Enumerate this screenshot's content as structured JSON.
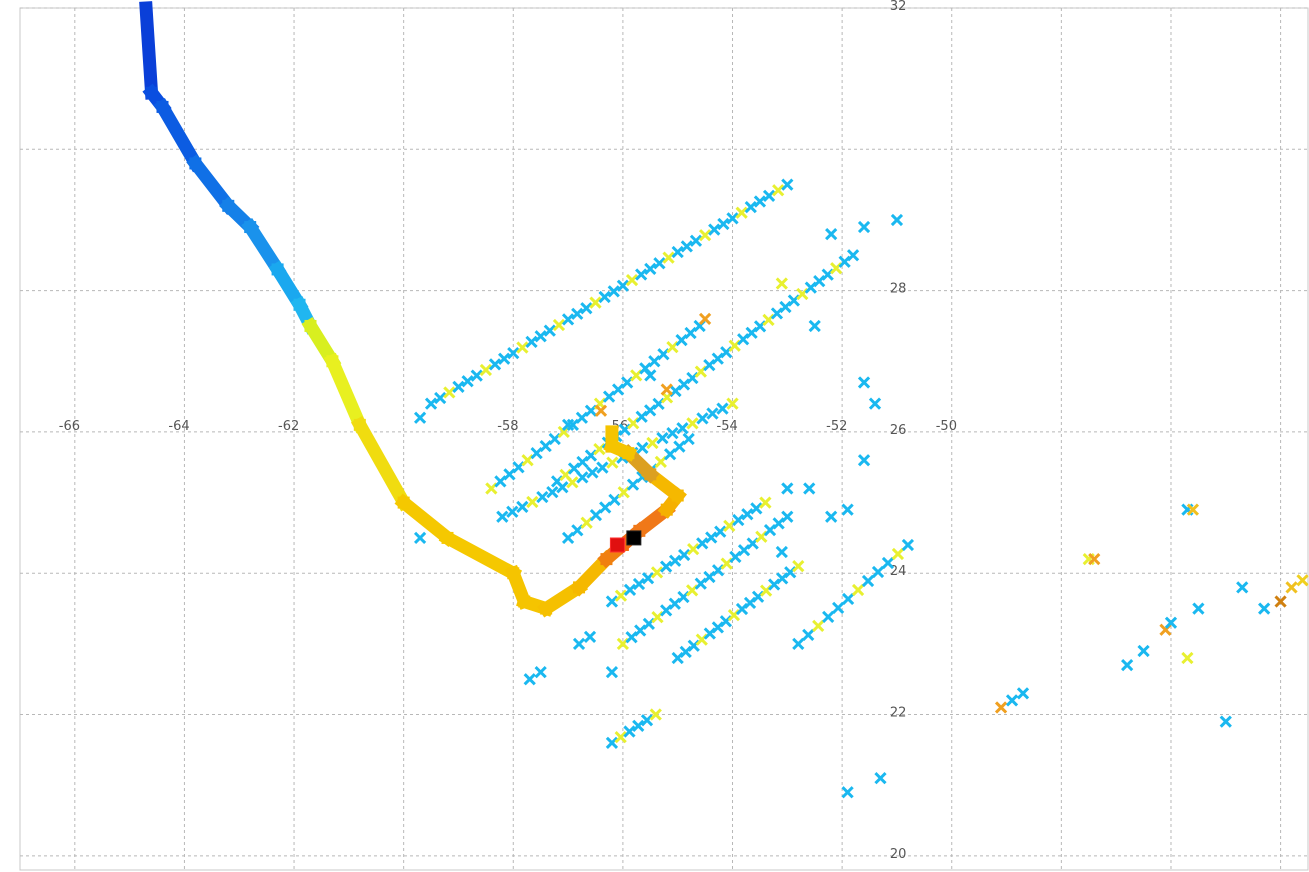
{
  "chart_data": {
    "type": "scatter",
    "title": "",
    "xlabel": "",
    "ylabel": "",
    "xlim": [
      -67,
      -43.5
    ],
    "ylim": [
      19.8,
      32
    ],
    "grid": true,
    "legend": "none",
    "x_ticks": [
      -66,
      -64,
      -62,
      -60,
      -58,
      -56,
      -54,
      -52,
      -50,
      -48,
      -46,
      -44
    ],
    "y_ticks": [
      20,
      22,
      24,
      26,
      28,
      30,
      32
    ],
    "x_tick_labels": [
      "-66",
      "-64",
      "-62",
      "-58",
      "-56",
      "-54",
      "-52",
      "-50"
    ],
    "y_tick_labels": [
      "20",
      "22",
      "24",
      "26",
      "28",
      "32"
    ],
    "colors": {
      "track_start": "#0a3fd8",
      "track_mid": "#1aa0ee",
      "track_yellow": "#e6f020",
      "track_orange": "#f5c400",
      "intense_orange": "#f07010",
      "intense_red": "#e01010",
      "peak": "#000000",
      "obs_cyan": "#1ab8f0",
      "obs_yellow": "#e8f030",
      "obs_orange": "#f0a020"
    },
    "series": [
      {
        "kind": "track",
        "points": [
          {
            "x": -64.7,
            "y": 32.0,
            "c": "#0a3fd8"
          },
          {
            "x": -64.6,
            "y": 30.8,
            "c": "#0a4ee0"
          },
          {
            "x": -64.4,
            "y": 30.6,
            "c": "#0c5ce2"
          },
          {
            "x": -63.8,
            "y": 29.8,
            "c": "#1070e6"
          },
          {
            "x": -63.2,
            "y": 29.2,
            "c": "#1580e8"
          },
          {
            "x": -62.8,
            "y": 28.9,
            "c": "#1a92ec"
          },
          {
            "x": -62.3,
            "y": 28.3,
            "c": "#1aa8ef"
          },
          {
            "x": -61.9,
            "y": 27.8,
            "c": "#20b6f0"
          },
          {
            "x": -61.7,
            "y": 27.5,
            "c": "#d8ef20"
          },
          {
            "x": -61.3,
            "y": 27.0,
            "c": "#e8f020"
          },
          {
            "x": -60.8,
            "y": 26.1,
            "c": "#f0dc10"
          },
          {
            "x": -60.0,
            "y": 25.0,
            "c": "#f5c800"
          },
          {
            "x": -59.2,
            "y": 24.5,
            "c": "#f5c800"
          },
          {
            "x": -58.0,
            "y": 24.0,
            "c": "#f5c400"
          },
          {
            "x": -57.8,
            "y": 23.6,
            "c": "#f5c400"
          },
          {
            "x": -57.4,
            "y": 23.5,
            "c": "#f5c000"
          },
          {
            "x": -56.8,
            "y": 23.8,
            "c": "#f5b800"
          },
          {
            "x": -56.3,
            "y": 24.2,
            "c": "#f08010"
          },
          {
            "x": -56.0,
            "y": 24.4,
            "c": "#f06a10"
          },
          {
            "x": -55.7,
            "y": 24.6,
            "c": "#f07818"
          },
          {
            "x": -55.2,
            "y": 24.9,
            "c": "#f5b000"
          },
          {
            "x": -55.0,
            "y": 25.1,
            "c": "#f5b800"
          },
          {
            "x": -55.5,
            "y": 25.4,
            "c": "#dca020"
          },
          {
            "x": -55.9,
            "y": 25.7,
            "c": "#f5c400"
          },
          {
            "x": -56.2,
            "y": 25.8,
            "c": "#f5c400"
          },
          {
            "x": -56.2,
            "y": 26.0,
            "c": "#f5c400"
          }
        ],
        "markers": [
          {
            "x": -56.1,
            "y": 24.4,
            "c": "#e01010"
          },
          {
            "x": -55.8,
            "y": 24.5,
            "c": "#000000"
          }
        ]
      },
      {
        "kind": "observations",
        "lines": [
          {
            "from": [
              -59.5,
              26.4
            ],
            "to": [
              -53.0,
              29.5
            ],
            "n": 40
          },
          {
            "from": [
              -57.2,
              25.3
            ],
            "to": [
              -51.8,
              28.5
            ],
            "n": 36
          },
          {
            "from": [
              -58.4,
              25.2
            ],
            "to": [
              -54.6,
              27.5
            ],
            "n": 24
          },
          {
            "from": [
              -58.2,
              24.8
            ],
            "to": [
              -54.0,
              26.4
            ],
            "n": 24
          },
          {
            "from": [
              -57.0,
              24.5
            ],
            "to": [
              -54.8,
              25.9
            ],
            "n": 14
          },
          {
            "from": [
              -56.2,
              23.6
            ],
            "to": [
              -53.4,
              25.0
            ],
            "n": 18
          },
          {
            "from": [
              -56.0,
              23.0
            ],
            "to": [
              -53.0,
              24.8
            ],
            "n": 20
          },
          {
            "from": [
              -55.0,
              22.8
            ],
            "to": [
              -52.8,
              24.1
            ],
            "n": 16
          },
          {
            "from": [
              -52.8,
              23.0
            ],
            "to": [
              -50.8,
              24.4
            ],
            "n": 12
          },
          {
            "from": [
              -56.2,
              21.6
            ],
            "to": [
              -55.4,
              22.0
            ],
            "n": 6
          }
        ],
        "points": [
          {
            "x": -59.7,
            "y": 26.2,
            "c": "#1ab8f0"
          },
          {
            "x": -59.7,
            "y": 24.5,
            "c": "#1ab8f0"
          },
          {
            "x": -57.7,
            "y": 22.5,
            "c": "#1ab8f0"
          },
          {
            "x": -57.5,
            "y": 22.6,
            "c": "#1ab8f0"
          },
          {
            "x": -56.2,
            "y": 22.6,
            "c": "#1ab8f0"
          },
          {
            "x": -56.8,
            "y": 23.0,
            "c": "#1ab8f0"
          },
          {
            "x": -56.6,
            "y": 23.1,
            "c": "#1ab8f0"
          },
          {
            "x": -52.5,
            "y": 27.5,
            "c": "#1ab8f0"
          },
          {
            "x": -52.2,
            "y": 28.8,
            "c": "#1ab8f0"
          },
          {
            "x": -51.6,
            "y": 28.9,
            "c": "#1ab8f0"
          },
          {
            "x": -51.4,
            "y": 26.4,
            "c": "#1ab8f0"
          },
          {
            "x": -51.6,
            "y": 26.7,
            "c": "#1ab8f0"
          },
          {
            "x": -51.0,
            "y": 29.0,
            "c": "#1ab8f0"
          },
          {
            "x": -53.0,
            "y": 25.2,
            "c": "#1ab8f0"
          },
          {
            "x": -52.6,
            "y": 25.2,
            "c": "#1ab8f0"
          },
          {
            "x": -51.6,
            "y": 25.6,
            "c": "#1ab8f0"
          },
          {
            "x": -52.2,
            "y": 24.8,
            "c": "#1ab8f0"
          },
          {
            "x": -51.9,
            "y": 24.9,
            "c": "#1ab8f0"
          },
          {
            "x": -53.1,
            "y": 24.3,
            "c": "#1ab8f0"
          },
          {
            "x": -51.9,
            "y": 20.9,
            "c": "#1ab8f0"
          },
          {
            "x": -51.3,
            "y": 21.1,
            "c": "#1ab8f0"
          },
          {
            "x": -49.1,
            "y": 22.1,
            "c": "#f0a020"
          },
          {
            "x": -48.9,
            "y": 22.2,
            "c": "#1ab8f0"
          },
          {
            "x": -48.7,
            "y": 22.3,
            "c": "#1ab8f0"
          },
          {
            "x": -47.5,
            "y": 24.2,
            "c": "#e8f030"
          },
          {
            "x": -47.4,
            "y": 24.2,
            "c": "#f0a020"
          },
          {
            "x": -46.8,
            "y": 22.7,
            "c": "#1ab8f0"
          },
          {
            "x": -46.5,
            "y": 22.9,
            "c": "#1ab8f0"
          },
          {
            "x": -46.1,
            "y": 23.2,
            "c": "#f0a020"
          },
          {
            "x": -46.0,
            "y": 23.3,
            "c": "#1ab8f0"
          },
          {
            "x": -45.7,
            "y": 24.9,
            "c": "#1ab8f0"
          },
          {
            "x": -45.6,
            "y": 24.9,
            "c": "#f0c020"
          },
          {
            "x": -45.7,
            "y": 22.8,
            "c": "#e8f030"
          },
          {
            "x": -45.5,
            "y": 23.5,
            "c": "#1ab8f0"
          },
          {
            "x": -45.0,
            "y": 21.9,
            "c": "#1ab8f0"
          },
          {
            "x": -44.7,
            "y": 23.8,
            "c": "#1ab8f0"
          },
          {
            "x": -44.3,
            "y": 23.5,
            "c": "#1ab8f0"
          },
          {
            "x": -44.0,
            "y": 23.6,
            "c": "#d08010"
          },
          {
            "x": -43.8,
            "y": 23.8,
            "c": "#f0c020"
          },
          {
            "x": -43.6,
            "y": 23.9,
            "c": "#f0d020"
          },
          {
            "x": -55.2,
            "y": 26.6,
            "c": "#f0a020"
          },
          {
            "x": -55.5,
            "y": 26.8,
            "c": "#1ab8f0"
          },
          {
            "x": -54.5,
            "y": 27.6,
            "c": "#f0a020"
          },
          {
            "x": -53.1,
            "y": 28.1,
            "c": "#e8f030"
          },
          {
            "x": -57.0,
            "y": 26.1,
            "c": "#1ab8f0"
          },
          {
            "x": -56.4,
            "y": 26.3,
            "c": "#f0a020"
          }
        ]
      }
    ]
  }
}
